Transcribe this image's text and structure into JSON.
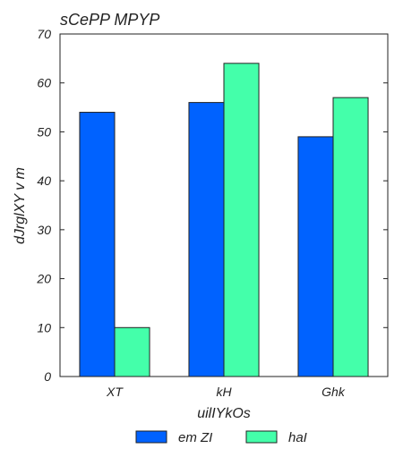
{
  "chart_data": {
    "type": "bar",
    "title": "sCePP MPYP",
    "xlabel": "uilIYkOs",
    "ylabel": "dJrglXY  v m",
    "categories": [
      "XT",
      "kH",
      "Ghk"
    ],
    "series": [
      {
        "name": "em ZI",
        "values": [
          54,
          56,
          49
        ],
        "color": "#0062ff"
      },
      {
        "name": "haI",
        "values": [
          10,
          64,
          57
        ],
        "color": "#44ffaa"
      }
    ],
    "ylim": [
      0,
      70
    ],
    "yticks": [
      0,
      10,
      20,
      30,
      40,
      50,
      60,
      70
    ],
    "grid": false,
    "legend_position": "bottom-center"
  }
}
